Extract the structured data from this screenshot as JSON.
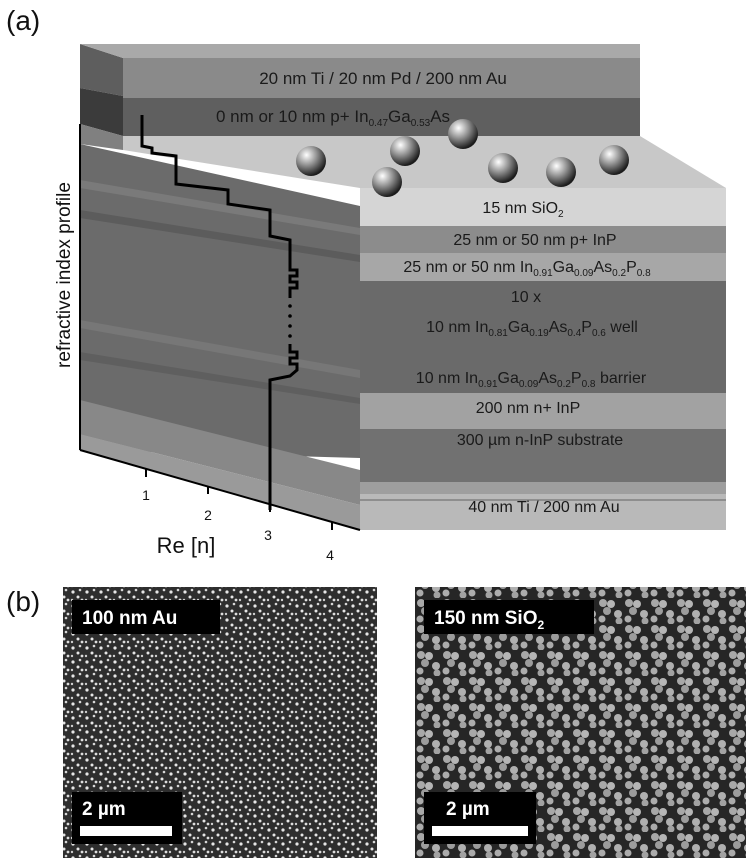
{
  "panel_a": {
    "label": "(a)",
    "side_label": "refractive index profile",
    "axis_title": "Re [n]",
    "ticks": [
      "1",
      "2",
      "3",
      "4"
    ],
    "layers": {
      "metal_top": "20 nm Ti / 20 nm Pd / 200 nm Au",
      "cap": {
        "pre": "0 nm or 10 nm p+ In",
        "s1": "0.47",
        "mid": "Ga",
        "s2": "0.53",
        "post": "As"
      },
      "sio2": {
        "pre": "15 nm SiO",
        "s1": "2"
      },
      "pinp": "25 nm or 50 nm p+ InP",
      "q_spacer": {
        "pre": "25 nm or 50 nm  In",
        "s1": "0.91",
        "a": "Ga",
        "s2": "0.09",
        "b": "As",
        "s3": "0.2",
        "c": "P",
        "s4": "0.8"
      },
      "repeat": "10 x",
      "well": {
        "pre": "10 nm In",
        "s1": "0.81",
        "a": "Ga",
        "s2": "0.19",
        "b": "As",
        "s3": "0.4",
        "c": "P",
        "s4": "0.6",
        "post": " well"
      },
      "barrier": {
        "pre": "10 nm  In",
        "s1": "0.91",
        "a": "Ga",
        "s2": "0.09",
        "b": "As",
        "s3": "0.2",
        "c": "P",
        "s4": "0.8",
        "post": " barrier"
      },
      "ninp": "200 nm n+ InP",
      "substrate": "300 µm n-InP substrate",
      "metal_bottom": "40 nm Ti  / 200 nm Au"
    }
  },
  "panel_b": {
    "label": "(b)",
    "left": {
      "label": "100 nm Au",
      "scale": "2 µm"
    },
    "right": {
      "label_pre": "150 nm SiO",
      "label_sub": "2",
      "scale": "2 µm"
    }
  },
  "colors": {
    "background": "#ffffff",
    "sem_background": "#2e2e2e",
    "particle_light": "#e6e6e6",
    "label_box": "#000000"
  }
}
